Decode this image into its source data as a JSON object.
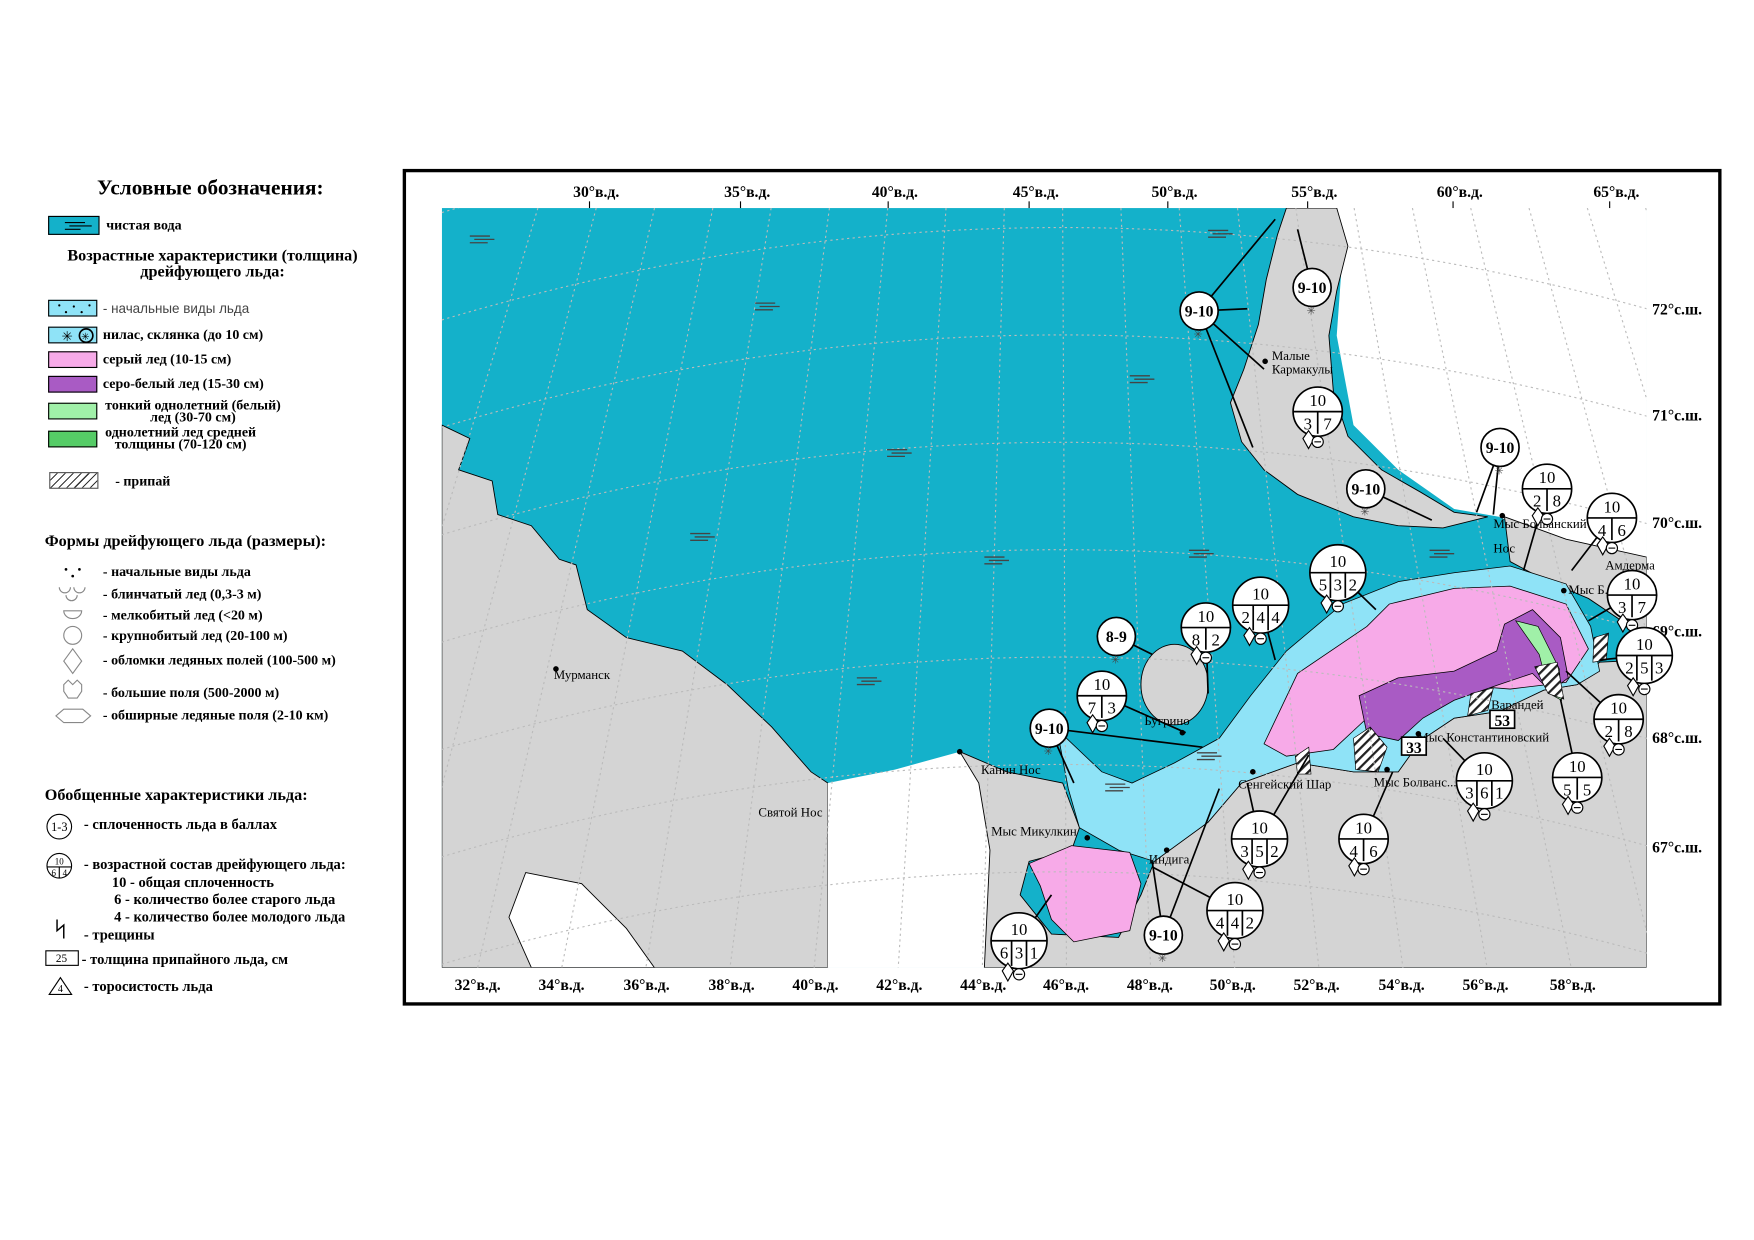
{
  "legend": {
    "title": "Условные обозначения:",
    "clear_water": "чистая вода",
    "age_heading_1": "Возрастные характеристики (толщина)",
    "age_heading_2": "дрейфующего льда:",
    "age_items": [
      {
        "label": "- начальные виды льда",
        "color": "#8fe3f7"
      },
      {
        "label": "нилас, склянка (до 10 см)",
        "color": "#8fe3f7"
      },
      {
        "label": "серый лед (10-15 см)",
        "color": "#f7aae8"
      },
      {
        "label": "серо-белый лед (15-30 см)",
        "color": "#a95bc4"
      },
      {
        "label_1": "тонкий однолетний (белый)",
        "label_2": "лед (30-70 см)",
        "color": "#a0f0a8"
      },
      {
        "label_1": "однолетний лед средней",
        "label_2": "толщины (70-120 см)",
        "color": "#55cc66"
      }
    ],
    "fast_ice": "- припай",
    "forms_heading": "Формы дрейфующего льда (размеры):",
    "forms": [
      {
        "label": "- начальные виды льда",
        "icon": "dots-icon"
      },
      {
        "label": "- блинчатый лед (0,3-3 м)",
        "icon": "pancake-icon"
      },
      {
        "label": "- мелкобитый лед (<20 м)",
        "icon": "half-circle-icon"
      },
      {
        "label": "- крупнобитый лед (20-100 м)",
        "icon": "circle-icon"
      },
      {
        "label": "- обломки ледяных полей (100-500 м)",
        "icon": "diamond-icon"
      },
      {
        "label": "- большие поля (500-2000 м)",
        "icon": "big-floe-icon"
      },
      {
        "label": "- обширные ледяные поля (2-10 км)",
        "icon": "hexagon-icon"
      }
    ],
    "general_heading": "Обобщенные характеристики льда:",
    "concentration_symbol": "1-3",
    "concentration_label": "- сплоченность льда в баллах",
    "stage_symbol": {
      "total": "10",
      "old": "6",
      "young": "4"
    },
    "stage_label": "- возрастной состав дрейфующего льда:",
    "stage_lines": [
      "10 - общая сплоченность",
      "6 - количество более старого льда",
      "4 - количество более молодого льда"
    ],
    "cracks_label": "- трещины",
    "fast_thickness_symbol": "25",
    "fast_thickness_label": "- толщина припайного льда, см",
    "ridging_symbol": "4",
    "ridging_label": "- торосистость льда"
  },
  "map": {
    "colors": {
      "sea": "#14b1ca",
      "land": "#d4d4d4",
      "nilas": "#8fe3f7",
      "grey_ice": "#f7aae8",
      "grey_white_ice": "#a95bc4",
      "thin_first_year": "#a0f0a8"
    },
    "top_lon_labels": [
      "30°в.д.",
      "35°в.д.",
      "40°в.д.",
      "45°в.д.",
      "50°в.д.",
      "55°в.д.",
      "60°в.д.",
      "65°в.д."
    ],
    "bottom_lon_labels": [
      "32°в.д.",
      "34°в.д.",
      "36°в.д.",
      "38°в.д.",
      "40°в.д.",
      "42°в.д.",
      "44°в.д.",
      "46°в.д.",
      "48°в.д.",
      "50°в.д.",
      "52°в.д.",
      "54°в.д.",
      "56°в.д.",
      "58°в.д."
    ],
    "lat_labels": [
      "72°с.ш.",
      "71°с.ш.",
      "70°с.ш.",
      "69°с.ш.",
      "68°с.ш.",
      "67°с.ш."
    ],
    "places": [
      "Мурманск",
      "Святой Нос",
      "Канин Нос",
      "Мыс Микулкин",
      "Бугрино",
      "Индига",
      "Сенгейский Шар",
      "Мыс Болванс...",
      "Мыс Константиновский",
      "Варандей",
      "Амдерма",
      "Мыс Болванский",
      "Нос",
      "Малые",
      "Кармакулы",
      "Мыс Б...с"
    ],
    "fast_ice_thickness": [
      "53",
      "33"
    ],
    "ice_circles": [
      {
        "total": "9-10"
      },
      {
        "total": "9-10"
      },
      {
        "total": "10",
        "parts": [
          "3",
          "7"
        ]
      },
      {
        "total": "9-10"
      },
      {
        "total": "9-10"
      },
      {
        "total": "10",
        "parts": [
          "2",
          "8"
        ]
      },
      {
        "total": "10",
        "parts": [
          "4",
          "6"
        ]
      },
      {
        "total": "10",
        "parts": [
          "5",
          "3",
          "2"
        ]
      },
      {
        "total": "10",
        "parts": [
          "2",
          "4",
          "4"
        ]
      },
      {
        "total": "10",
        "parts": [
          "8",
          "2"
        ]
      },
      {
        "total": "8-9"
      },
      {
        "total": "10",
        "parts": [
          "7",
          "3"
        ]
      },
      {
        "total": "9-10"
      },
      {
        "total": "10",
        "parts": [
          "3",
          "7"
        ]
      },
      {
        "total": "10",
        "parts": [
          "2",
          "5",
          "3"
        ]
      },
      {
        "total": "10",
        "parts": [
          "2",
          "8"
        ]
      },
      {
        "total": "10",
        "parts": [
          "3",
          "6",
          "1"
        ]
      },
      {
        "total": "10",
        "parts": [
          "5",
          "5"
        ]
      },
      {
        "total": "10",
        "parts": [
          "3",
          "5",
          "2"
        ]
      },
      {
        "total": "10",
        "parts": [
          "4",
          "6"
        ]
      },
      {
        "total": "10",
        "parts": [
          "4",
          "4",
          "2"
        ]
      },
      {
        "total": "10",
        "parts": [
          "6",
          "3",
          "1"
        ]
      },
      {
        "total": "9-10"
      }
    ]
  }
}
